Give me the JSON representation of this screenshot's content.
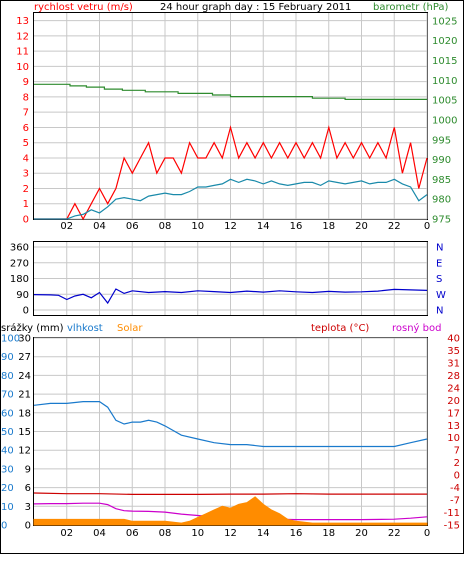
{
  "chart_data": [
    {
      "type": "line",
      "title": "24 hour graph day : 15 February 2011",
      "left_axis_label": "rychlost vetru (m/s)",
      "right_axis_label": "barometr (hPa)",
      "x_ticks": [
        "02",
        "04",
        "06",
        "08",
        "10",
        "12",
        "14",
        "16",
        "18",
        "20",
        "22",
        "0"
      ],
      "x_range_hours": [
        0,
        24
      ],
      "ylim_left": [
        0,
        13.5
      ],
      "ylim_right": [
        975,
        1027
      ],
      "y_ticks_left": [
        "0",
        "1",
        "2",
        "3",
        "4",
        "5",
        "6",
        "7",
        "8",
        "9",
        "10",
        "11",
        "12",
        "13"
      ],
      "y_ticks_right": [
        "975",
        "980",
        "985",
        "990",
        "995",
        "1000",
        "1005",
        "1010",
        "1015",
        "1020",
        "1025"
      ],
      "grid": true,
      "colors": {
        "gust": "#ff0000",
        "average": "#1a8aaa",
        "pressure": "#2e8b2e",
        "grid": "#c8c8c8",
        "left_label": "#ff0000",
        "right_label": "#2e8b2e"
      },
      "series": [
        {
          "axis": "right",
          "color": "#2e8b2e",
          "x": [
            0,
            2.2,
            2.2,
            3.2,
            3.2,
            4.3,
            4.3,
            5.4,
            5.4,
            6.8,
            6.8,
            8.8,
            8.8,
            10.9,
            10.9,
            12.0,
            12.0,
            17.0,
            17.0,
            19.0,
            19.0,
            24
          ],
          "values": [
            1009,
            1009,
            1008.6,
            1008.6,
            1008.3,
            1008.3,
            1007.8,
            1007.8,
            1007.5,
            1007.5,
            1007.1,
            1007.1,
            1006.7,
            1006.7,
            1006.3,
            1006.3,
            1005.9,
            1005.9,
            1005.5,
            1005.5,
            1005.2,
            1005.2
          ]
        },
        {
          "axis": "left",
          "color": "#ff0000",
          "x": [
            0,
            2.0,
            2.5,
            3.0,
            3.5,
            4.0,
            4.5,
            5.0,
            5.5,
            6.0,
            6.5,
            7.0,
            7.5,
            8.0,
            8.5,
            9.0,
            9.5,
            10.0,
            10.5,
            11.0,
            11.5,
            12.0,
            12.5,
            13.0,
            13.5,
            14.0,
            14.5,
            15.0,
            15.5,
            16.0,
            16.5,
            17.0,
            17.5,
            18.0,
            18.5,
            19.0,
            19.5,
            20.0,
            20.5,
            21.0,
            21.5,
            22.0,
            22.5,
            23.0,
            23.5,
            24.0
          ],
          "values": [
            0,
            0,
            1,
            0,
            1,
            2,
            1,
            2,
            4,
            3,
            4,
            5,
            3,
            4,
            4,
            3,
            5,
            4,
            4,
            5,
            4,
            6,
            4,
            5,
            4,
            5,
            4,
            5,
            4,
            5,
            4,
            5,
            4,
            6,
            4,
            5,
            4,
            5,
            4,
            5,
            4,
            6,
            3,
            5,
            2,
            4
          ]
        },
        {
          "axis": "left",
          "color": "#1a8aaa",
          "x": [
            0,
            2.0,
            2.5,
            3.0,
            3.5,
            4.0,
            4.5,
            5.0,
            5.5,
            6.0,
            6.5,
            7.0,
            7.5,
            8.0,
            8.5,
            9.0,
            9.5,
            10.0,
            10.5,
            11.0,
            11.5,
            12.0,
            12.5,
            13.0,
            13.5,
            14.0,
            14.5,
            15.0,
            15.5,
            16.0,
            16.5,
            17.0,
            17.5,
            18.0,
            18.5,
            19.0,
            19.5,
            20.0,
            20.5,
            21.0,
            21.5,
            22.0,
            22.5,
            23.0,
            23.5,
            24.0
          ],
          "values": [
            0,
            0,
            0.2,
            0.3,
            0.6,
            0.4,
            0.8,
            1.3,
            1.4,
            1.3,
            1.2,
            1.5,
            1.6,
            1.7,
            1.6,
            1.6,
            1.8,
            2.1,
            2.1,
            2.2,
            2.3,
            2.6,
            2.4,
            2.6,
            2.5,
            2.3,
            2.5,
            2.3,
            2.2,
            2.3,
            2.4,
            2.4,
            2.2,
            2.5,
            2.4,
            2.3,
            2.4,
            2.5,
            2.3,
            2.4,
            2.4,
            2.6,
            2.3,
            2.1,
            1.2,
            1.6
          ]
        }
      ]
    },
    {
      "type": "line",
      "title": "",
      "right_axis_label": "N W S E N",
      "x_ticks": [
        "02",
        "04",
        "06",
        "08",
        "10",
        "12",
        "14",
        "16",
        "18",
        "20",
        "22",
        "0"
      ],
      "x_range_hours": [
        0,
        24
      ],
      "ylim": [
        0,
        360
      ],
      "y_ticks": [
        "0",
        "90",
        "180",
        "270",
        "360"
      ],
      "compass_letters": [
        "N",
        "W",
        "S",
        "E",
        "N"
      ],
      "grid": true,
      "colors": {
        "direction": "#0000cc",
        "grid": "#c8c8c8",
        "letters": "#0000cc"
      },
      "series": [
        {
          "color": "#0000cc",
          "x": [
            0,
            1.0,
            1.5,
            2.0,
            2.5,
            3.0,
            3.5,
            4.0,
            4.5,
            5.0,
            5.5,
            6.0,
            7.0,
            8.0,
            9.0,
            10.0,
            11.0,
            12.0,
            13.0,
            14.0,
            15.0,
            16.0,
            17.0,
            18.0,
            19.0,
            20.0,
            21.0,
            22.0,
            23.0,
            24.0
          ],
          "values": [
            88,
            86,
            84,
            60,
            80,
            90,
            70,
            100,
            40,
            120,
            95,
            110,
            100,
            105,
            100,
            110,
            105,
            100,
            108,
            102,
            110,
            104,
            100,
            106,
            102,
            104,
            108,
            118,
            115,
            112
          ]
        }
      ]
    },
    {
      "type": "line",
      "title": "",
      "labels": {
        "rain": "srážky (mm)",
        "humidity": "vlhkost",
        "solar": "Solar",
        "temperature": "teplota (°C)",
        "dewpoint": "rosný bod"
      },
      "x_ticks": [
        "02",
        "04",
        "06",
        "08",
        "10",
        "12",
        "14",
        "16",
        "18",
        "20",
        "22",
        "0"
      ],
      "x_range_hours": [
        0,
        24
      ],
      "y_ticks_rain": [
        "0",
        "3",
        "6",
        "9",
        "12",
        "15",
        "18",
        "21",
        "24",
        "27",
        "30"
      ],
      "y_ticks_humidity": [
        "0",
        "10",
        "20",
        "30",
        "40",
        "50",
        "60",
        "70",
        "80",
        "90",
        "100"
      ],
      "y_ticks_temperature": [
        "-15",
        "-11",
        "-7",
        "-4",
        "0",
        "2",
        "7",
        "10",
        "13",
        "17",
        "20",
        "24",
        "28",
        "31",
        "35",
        "40"
      ],
      "ylim_humidity": [
        0,
        100
      ],
      "ylim_temperature": [
        -15,
        40
      ],
      "grid": true,
      "colors": {
        "rain_label": "#000000",
        "humidity": "#1a7acc",
        "solar": "#ff8c00",
        "temperature": "#cc0000",
        "dewpoint": "#cc00cc",
        "grid": "#c8c8c8"
      },
      "series": [
        {
          "name": "vlhkost",
          "axis": "humidity",
          "color": "#1a7acc",
          "x": [
            0,
            1.0,
            2.0,
            3.0,
            4.0,
            4.5,
            5.0,
            5.5,
            6.0,
            6.5,
            7.0,
            7.5,
            8.0,
            9.0,
            10.0,
            11.0,
            12.0,
            13.0,
            14.0,
            15.0,
            16.0,
            17.0,
            18.0,
            19.0,
            20.0,
            21.0,
            22.0,
            23.0,
            24.0
          ],
          "values": [
            64,
            65,
            65,
            66,
            66,
            63,
            56,
            54,
            55,
            55,
            56,
            55,
            53,
            48,
            46,
            44,
            43,
            43,
            42,
            42,
            42,
            42,
            42,
            42,
            42,
            42,
            42,
            44,
            46
          ]
        },
        {
          "name": "teplota",
          "axis": "temperature",
          "color": "#cc0000",
          "x": [
            0,
            2.0,
            4.0,
            6.0,
            8.0,
            10.0,
            12.0,
            14.0,
            16.0,
            18.0,
            20.0,
            22.0,
            24.0
          ],
          "values": [
            -5.6,
            -5.8,
            -5.8,
            -6.0,
            -6.0,
            -6.0,
            -5.9,
            -5.9,
            -5.8,
            -5.9,
            -5.9,
            -5.9,
            -5.9
          ]
        },
        {
          "name": "rosný bod",
          "axis": "temperature",
          "color": "#cc00cc",
          "x": [
            0,
            1.0,
            2.0,
            3.0,
            4.0,
            4.5,
            5.0,
            5.5,
            6.0,
            7.0,
            8.0,
            9.0,
            10.0,
            11.0,
            12.0,
            13.0,
            14.0,
            15.0,
            16.0,
            17.0,
            18.0,
            20.0,
            22.0,
            23.0,
            24.0
          ],
          "values": [
            -8.8,
            -8.7,
            -8.7,
            -8.6,
            -8.6,
            -9.0,
            -10.2,
            -10.8,
            -10.9,
            -11.0,
            -11.2,
            -11.8,
            -12.2,
            -12.6,
            -12.8,
            -13.0,
            -13.2,
            -13.3,
            -13.4,
            -13.4,
            -13.4,
            -13.4,
            -13.3,
            -13.0,
            -12.6
          ]
        },
        {
          "name": "Solar",
          "axis": "humidity",
          "color": "#ff8c00",
          "fill": true,
          "x": [
            0,
            5.5,
            6.0,
            8.0,
            9.0,
            9.5,
            10.0,
            10.5,
            11.0,
            11.5,
            12.0,
            12.5,
            13.0,
            13.5,
            14.0,
            14.5,
            15.0,
            15.5,
            16.0,
            17.0,
            20.0,
            22.0,
            24.0
          ],
          "values": [
            3,
            3,
            2,
            2,
            1,
            2,
            4,
            6,
            8,
            10,
            9,
            11,
            12,
            15,
            11,
            8,
            6,
            3,
            2,
            1,
            1,
            1,
            1
          ]
        }
      ]
    }
  ]
}
